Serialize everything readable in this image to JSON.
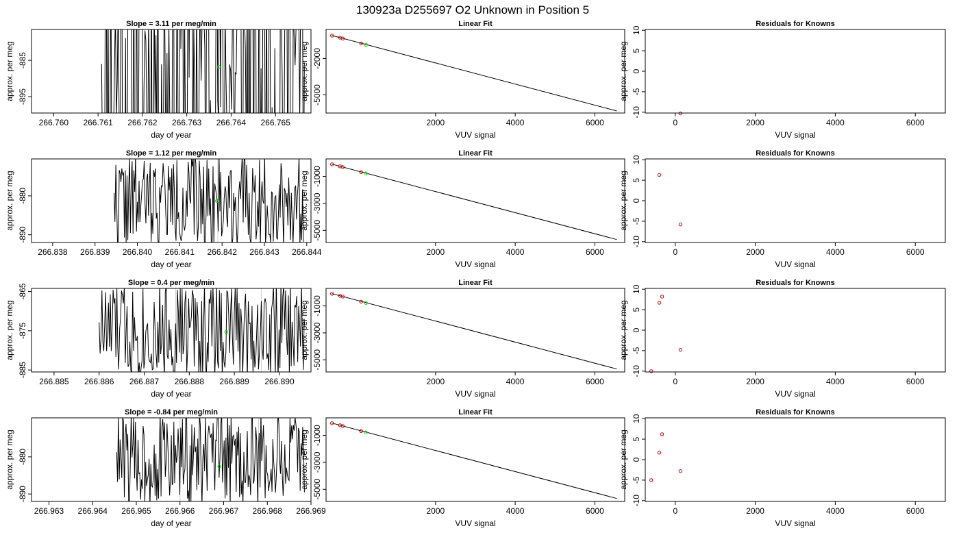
{
  "figure_title": "130923a      D255697   O2 Unknown in Position  5",
  "colors": {
    "trace": "#000000",
    "unknown_point": "#00dd00",
    "known_point": "#cc0000",
    "fit_line": "#000000",
    "marker_line": "#cccccc"
  },
  "chart_data": [
    {
      "row": 1,
      "type": "line",
      "title": "Slope =  3.11  per meg/min",
      "xlabel": "day of year",
      "ylabel": "approx. per meg",
      "xlim": [
        266.7595,
        266.7658
      ],
      "ylim": [
        -899.5,
        -876.5
      ],
      "xticks": [
        "266.760",
        "266.761",
        "266.762",
        "266.763",
        "266.764",
        "266.765"
      ],
      "yticks": [
        "-885",
        "-895"
      ],
      "trace_start": 266.76108,
      "trace_end": 266.76565,
      "trace_seed": 11,
      "trace_amp": 60,
      "markers": [
        266.7637
      ],
      "unknown": {
        "x": 266.76372,
        "y": -886.8
      }
    },
    {
      "type": "line",
      "title": "Linear Fit",
      "xlabel": "VUV signal",
      "ylabel": "approx. per meg",
      "xlim": [
        -750,
        6750
      ],
      "ylim": [
        -6500,
        400
      ],
      "xticks": [
        "2000",
        "4000",
        "6000"
      ],
      "yticks": [
        "-2000",
        "-5000"
      ],
      "fit": {
        "x": [
          -600,
          6550
        ],
        "y": [
          -100,
          -6330
        ]
      },
      "knowns": [
        {
          "x": -600,
          "y": -110
        },
        {
          "x": -400,
          "y": -280
        },
        {
          "x": -330,
          "y": -350
        },
        {
          "x": 130,
          "y": -760
        }
      ],
      "unknown": {
        "x": 250,
        "y": -880
      }
    },
    {
      "type": "scatter",
      "title": "Residuals for Knowns",
      "xlabel": "VUV signal",
      "ylabel": "approx. per meg",
      "xlim": [
        -750,
        6750
      ],
      "ylim": [
        -10.2,
        10.2
      ],
      "xticks": [
        "0",
        "2000",
        "4000",
        "6000"
      ],
      "yticks": [
        "10",
        "5",
        "0",
        "-5",
        "-10"
      ],
      "knowns": [
        {
          "x": 130,
          "y": -10.3
        }
      ]
    },
    {
      "row": 2,
      "type": "line",
      "title": "Slope =  1.12  per meg/min",
      "xlabel": "day of year",
      "ylabel": "approx. per meg",
      "xlim": [
        266.8375,
        266.8441
      ],
      "ylim": [
        -892,
        -870.5
      ],
      "xticks": [
        "266.838",
        "266.839",
        "266.840",
        "266.841",
        "266.842",
        "266.843",
        "266.844"
      ],
      "yticks": [
        "-880",
        "-890"
      ],
      "trace_start": 266.83945,
      "trace_end": 266.84392,
      "trace_seed": 22,
      "trace_amp": 12,
      "markers": [
        266.8419
      ],
      "unknown": {
        "x": 266.84188,
        "y": -881.3
      }
    },
    {
      "type": "line",
      "title": "Linear Fit",
      "xlabel": "VUV signal",
      "ylabel": "approx. per meg",
      "xlim": [
        -750,
        6750
      ],
      "ylim": [
        -5900,
        300
      ],
      "xticks": [
        "2000",
        "4000",
        "6000"
      ],
      "yticks": [
        "-1000",
        "-3000",
        "-5000"
      ],
      "fit": {
        "x": [
          -600,
          6550
        ],
        "y": [
          -90,
          -5680
        ]
      },
      "knowns": [
        {
          "x": -600,
          "y": -100
        },
        {
          "x": -400,
          "y": -250
        },
        {
          "x": -330,
          "y": -310
        },
        {
          "x": 130,
          "y": -680
        }
      ],
      "unknown": {
        "x": 250,
        "y": -780
      }
    },
    {
      "type": "scatter",
      "title": "Residuals for Knowns",
      "xlabel": "VUV signal",
      "ylabel": "approx. per meg",
      "xlim": [
        -750,
        6750
      ],
      "ylim": [
        -10.2,
        10.2
      ],
      "xticks": [
        "0",
        "2000",
        "4000",
        "6000"
      ],
      "yticks": [
        "10",
        "5",
        "0",
        "-5",
        "-10"
      ],
      "knowns": [
        {
          "x": -400,
          "y": 6.3
        },
        {
          "x": 130,
          "y": -5.8
        }
      ]
    },
    {
      "row": 3,
      "type": "line",
      "title": "Slope =  0.4  per meg/min",
      "xlabel": "day of year",
      "ylabel": "approx. per meg",
      "xlim": [
        266.8845,
        266.8907
      ],
      "ylim": [
        -885.5,
        -864.2
      ],
      "xticks": [
        "266.885",
        "266.886",
        "266.887",
        "266.888",
        "266.889",
        "266.890"
      ],
      "yticks": [
        "-865",
        "-875",
        "-885"
      ],
      "trace_start": 266.886,
      "trace_end": 266.89055,
      "trace_seed": 33,
      "trace_amp": 13,
      "markers": [
        266.8877,
        266.8896
      ],
      "unknown": {
        "x": 266.88882,
        "y": -875.3
      }
    },
    {
      "type": "line",
      "title": "Linear Fit",
      "xlabel": "VUV signal",
      "ylabel": "approx. per meg",
      "xlim": [
        -750,
        6750
      ],
      "ylim": [
        -5900,
        300
      ],
      "xticks": [
        "2000",
        "4000",
        "6000"
      ],
      "yticks": [
        "-1000",
        "-3000",
        "-5000"
      ],
      "fit": {
        "x": [
          -600,
          6550
        ],
        "y": [
          -90,
          -5680
        ]
      },
      "knowns": [
        {
          "x": -600,
          "y": -100
        },
        {
          "x": -400,
          "y": -250
        },
        {
          "x": -330,
          "y": -310
        },
        {
          "x": 130,
          "y": -680
        }
      ],
      "unknown": {
        "x": 250,
        "y": -780
      }
    },
    {
      "type": "scatter",
      "title": "Residuals for Knowns",
      "xlabel": "VUV signal",
      "ylabel": "approx. per meg",
      "xlim": [
        -750,
        6750
      ],
      "ylim": [
        -10.2,
        10.2
      ],
      "xticks": [
        "0",
        "2000",
        "4000",
        "6000"
      ],
      "yticks": [
        "10",
        "5",
        "0",
        "-5",
        "-10"
      ],
      "knowns": [
        {
          "x": -600,
          "y": -10.0
        },
        {
          "x": -400,
          "y": 6.7
        },
        {
          "x": -330,
          "y": 8.2
        },
        {
          "x": 130,
          "y": -4.8
        }
      ]
    },
    {
      "row": 4,
      "type": "line",
      "title": "Slope =  -0.84  per meg/min",
      "xlabel": "day of year",
      "ylabel": "approx. per meg",
      "xlim": [
        266.9626,
        266.969
      ],
      "ylim": [
        -892,
        -869.5
      ],
      "xticks": [
        "266.963",
        "266.964",
        "266.965",
        "266.966",
        "266.967",
        "266.968",
        "266.969"
      ],
      "yticks": [
        "-880",
        "-890"
      ],
      "trace_start": 266.96455,
      "trace_end": 266.96885,
      "trace_seed": 44,
      "trace_amp": 13,
      "markers": [
        266.966,
        266.9678
      ],
      "unknown": {
        "x": 266.9669,
        "y": -882.6
      }
    },
    {
      "type": "line",
      "title": "Linear Fit",
      "xlabel": "VUV signal",
      "ylabel": "approx. per meg",
      "xlim": [
        -750,
        6750
      ],
      "ylim": [
        -5900,
        300
      ],
      "xticks": [
        "2000",
        "4000",
        "6000"
      ],
      "yticks": [
        "-1000",
        "-3000",
        "-5000"
      ],
      "fit": {
        "x": [
          -600,
          6550
        ],
        "y": [
          -90,
          -5680
        ]
      },
      "knowns": [
        {
          "x": -600,
          "y": -100
        },
        {
          "x": -400,
          "y": -250
        },
        {
          "x": -330,
          "y": -310
        },
        {
          "x": 130,
          "y": -680
        }
      ],
      "unknown": {
        "x": 250,
        "y": -780
      }
    },
    {
      "type": "scatter",
      "title": "Residuals for Knowns",
      "xlabel": "VUV signal",
      "ylabel": "approx. per meg",
      "xlim": [
        -750,
        6750
      ],
      "ylim": [
        -10.2,
        10.2
      ],
      "xticks": [
        "0",
        "2000",
        "4000",
        "6000"
      ],
      "yticks": [
        "10",
        "5",
        "0",
        "-5",
        "-10"
      ],
      "knowns": [
        {
          "x": -600,
          "y": -5.0
        },
        {
          "x": -400,
          "y": 1.7
        },
        {
          "x": -330,
          "y": 6.2
        },
        {
          "x": 130,
          "y": -2.8
        }
      ]
    }
  ]
}
